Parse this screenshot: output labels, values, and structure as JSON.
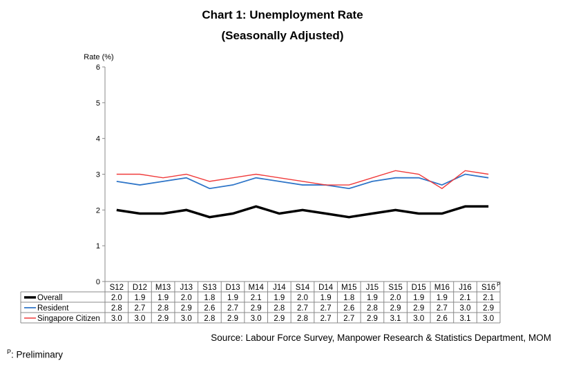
{
  "chart_data": {
    "type": "line",
    "title": "Chart 1: Unemployment Rate",
    "subtitle": "(Seasonally Adjusted)",
    "ylabel": "Rate (%)",
    "ylim": [
      0,
      6
    ],
    "yticks": [
      "0",
      "1",
      "2",
      "3",
      "4",
      "5",
      "6"
    ],
    "categories": [
      "S12",
      "D12",
      "M13",
      "J13",
      "S13",
      "D13",
      "M14",
      "J14",
      "S14",
      "D14",
      "M15",
      "J15",
      "S15",
      "D15",
      "M16",
      "J16",
      "S16"
    ],
    "last_category_marker": "P",
    "grid": false,
    "legend_placement": "table-below",
    "series": [
      {
        "name": "Overall",
        "color": "#000000",
        "values": [
          2.0,
          1.9,
          1.9,
          2.0,
          1.8,
          1.9,
          2.1,
          1.9,
          2.0,
          1.9,
          1.8,
          1.9,
          2.0,
          1.9,
          1.9,
          2.1,
          2.1
        ],
        "labels": [
          "2.0",
          "1.9",
          "1.9",
          "2.0",
          "1.8",
          "1.9",
          "2.1",
          "1.9",
          "2.0",
          "1.9",
          "1.8",
          "1.9",
          "2.0",
          "1.9",
          "1.9",
          "2.1",
          "2.1"
        ]
      },
      {
        "name": "Resident",
        "color": "#2e75c8",
        "values": [
          2.8,
          2.7,
          2.8,
          2.9,
          2.6,
          2.7,
          2.9,
          2.8,
          2.7,
          2.7,
          2.6,
          2.8,
          2.9,
          2.9,
          2.7,
          3.0,
          2.9
        ],
        "labels": [
          "2.8",
          "2.7",
          "2.8",
          "2.9",
          "2.6",
          "2.7",
          "2.9",
          "2.8",
          "2.7",
          "2.7",
          "2.6",
          "2.8",
          "2.9",
          "2.9",
          "2.7",
          "3.0",
          "2.9"
        ]
      },
      {
        "name": "Singapore Citizen",
        "color": "#f03a3a",
        "values": [
          3.0,
          3.0,
          2.9,
          3.0,
          2.8,
          2.9,
          3.0,
          2.9,
          2.8,
          2.7,
          2.7,
          2.9,
          3.1,
          3.0,
          2.6,
          3.1,
          3.0
        ],
        "labels": [
          "3.0",
          "3.0",
          "2.9",
          "3.0",
          "2.8",
          "2.9",
          "3.0",
          "2.9",
          "2.8",
          "2.7",
          "2.7",
          "2.9",
          "3.1",
          "3.0",
          "2.6",
          "3.1",
          "3.0"
        ]
      }
    ]
  },
  "source": "Source: Labour Force Survey, Manpower Research & Statistics Department, MOM",
  "footnote": {
    "marker": "P",
    "text": ": Preliminary"
  }
}
